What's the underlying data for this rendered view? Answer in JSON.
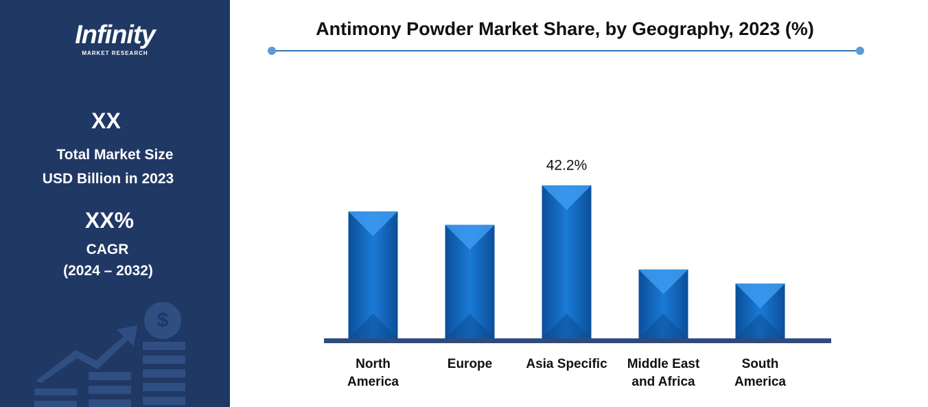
{
  "sidebar": {
    "logo": "Infinity",
    "logo_sub": "MARKET RESEARCH",
    "market_size": "XX",
    "market_size_label_1": "Total Market Size",
    "market_size_label_2": "USD Billion in 2023",
    "cagr": "XX%",
    "cagr_label": "CAGR",
    "cagr_period": "(2024 – 2032)"
  },
  "chart_data": {
    "type": "bar",
    "title": "Antimony Powder Market Share, by Geography, 2023 (%)",
    "categories": [
      "North America",
      "Europe",
      "Asia Specific",
      "Middle East and Africa",
      "South America"
    ],
    "values": [
      35.0,
      31.3,
      42.2,
      19.0,
      15.1
    ],
    "value_labels": [
      null,
      null,
      "42.2%",
      null,
      null
    ],
    "color": "#1168bf"
  }
}
